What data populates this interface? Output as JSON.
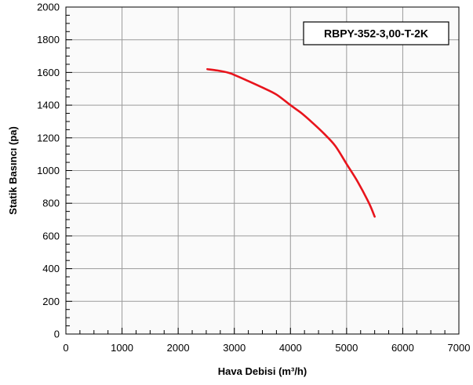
{
  "chart_data": {
    "type": "line",
    "title": "RBPY-352-3,00-T-2K",
    "xlabel": "Hava Debisi (m³/h)",
    "ylabel": "Statik Basıncı (pa)",
    "xlim": [
      0,
      7000
    ],
    "ylim": [
      0,
      2000
    ],
    "x_ticks": [
      0,
      1000,
      2000,
      3000,
      4000,
      5000,
      6000,
      7000
    ],
    "y_ticks": [
      0,
      200,
      400,
      600,
      800,
      1000,
      1200,
      1400,
      1600,
      1800,
      2000
    ],
    "x_tick_labels": [
      "0",
      "1000",
      "2000",
      "3000",
      "4000",
      "5000",
      "6000",
      "7000"
    ],
    "y_tick_labels": [
      "0",
      "200",
      "400",
      "600",
      "800",
      "1000",
      "1200",
      "1400",
      "1600",
      "1800",
      "2000"
    ],
    "grid": true,
    "series": [
      {
        "color": "#e8141c",
        "points": [
          [
            2520,
            1620
          ],
          [
            2700,
            1612
          ],
          [
            2900,
            1598
          ],
          [
            3000,
            1585
          ],
          [
            3200,
            1555
          ],
          [
            3500,
            1508
          ],
          [
            3750,
            1465
          ],
          [
            4000,
            1400
          ],
          [
            4200,
            1350
          ],
          [
            4400,
            1290
          ],
          [
            4600,
            1225
          ],
          [
            4800,
            1150
          ],
          [
            5000,
            1040
          ],
          [
            5200,
            930
          ],
          [
            5400,
            800
          ],
          [
            5500,
            718
          ]
        ]
      }
    ]
  }
}
